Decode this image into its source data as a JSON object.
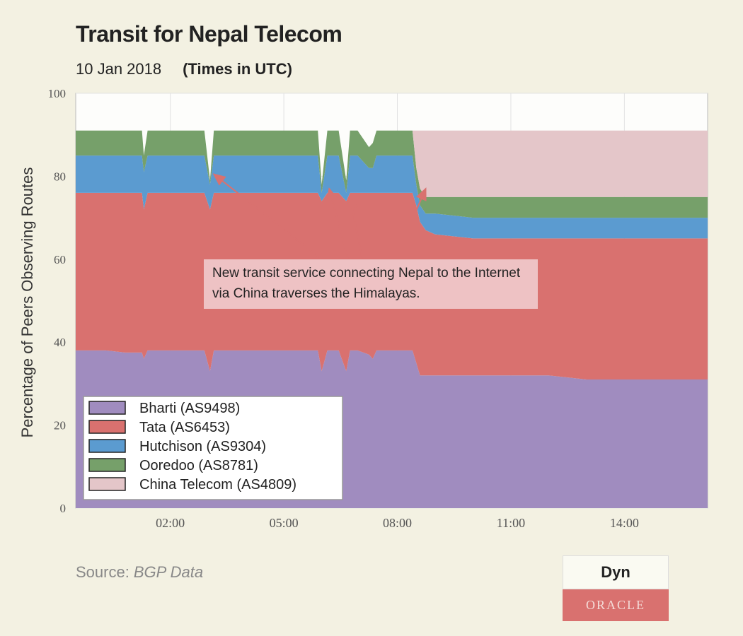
{
  "header": {
    "title": "Transit for Nepal Telecom",
    "date": "10 Jan 2018",
    "time_note": "(Times in UTC)"
  },
  "footer": {
    "source_label": "Source:",
    "source_value": "BGP Data",
    "logo_top": "Dyn",
    "logo_bottom": "ORACLE"
  },
  "chart_data": {
    "type": "area",
    "stacked": true,
    "title": "Transit for Nepal Telecom",
    "ylabel": "Percentage of Peers Observing Routes",
    "xlabel": "",
    "ylim": [
      0,
      100
    ],
    "xlim": [
      -0.5,
      16.2
    ],
    "yticks": [
      0,
      20,
      40,
      60,
      80,
      100
    ],
    "xticks": [
      2,
      5,
      8,
      11,
      14
    ],
    "xtick_labels": [
      "02:00",
      "05:00",
      "08:00",
      "11:00",
      "14:00"
    ],
    "grid": true,
    "legend_position": "bottom-left",
    "x_unit": "hours UTC",
    "x": [
      -0.5,
      0.3,
      0.8,
      1.25,
      1.3,
      1.4,
      2.0,
      2.9,
      3.05,
      3.15,
      3.3,
      4.0,
      5.0,
      5.9,
      6.0,
      6.15,
      6.3,
      6.45,
      6.65,
      6.75,
      6.85,
      6.95,
      7.25,
      7.35,
      7.45,
      7.85,
      8.0,
      8.4,
      8.5,
      8.6,
      8.75,
      9.0,
      10.0,
      11.0,
      12.0,
      13.0,
      14.0,
      15.0,
      16.2
    ],
    "series": [
      {
        "name": "Bharti (AS9498)",
        "color": "#a08cbf",
        "values": [
          38,
          38,
          37.5,
          37.5,
          36,
          38,
          38,
          38,
          33,
          38,
          38,
          38,
          38,
          38,
          33,
          38,
          38,
          38,
          33,
          38,
          38,
          38,
          37,
          36,
          38,
          38,
          38,
          38,
          35,
          32,
          32,
          32,
          32,
          32,
          32,
          31,
          31,
          31,
          31
        ]
      },
      {
        "name": "Tata (AS6453)",
        "color": "#d9716f",
        "values": [
          38,
          38,
          38.5,
          38.5,
          36,
          38,
          38,
          38,
          39,
          38,
          38,
          38,
          38,
          38,
          41,
          38,
          38,
          38,
          41,
          38,
          38,
          38,
          39,
          40,
          38,
          38,
          38,
          38,
          38,
          37,
          35,
          34,
          33,
          33,
          33,
          34,
          34,
          34,
          34
        ]
      },
      {
        "name": "Hutchison (AS9304)",
        "color": "#5b9bd0",
        "values": [
          9,
          9,
          9,
          9,
          9,
          9,
          9,
          9,
          6,
          9,
          9,
          9,
          9,
          9,
          2,
          9,
          9,
          9,
          2,
          9,
          9,
          9,
          6,
          6,
          9,
          9,
          9,
          9,
          5,
          4,
          4,
          5,
          5,
          5,
          5,
          5,
          5,
          5,
          5
        ]
      },
      {
        "name": "Ooredoo (AS8781)",
        "color": "#76a06a",
        "values": [
          6,
          6,
          6,
          6,
          4,
          6,
          6,
          6,
          1,
          6,
          6,
          6,
          6,
          6,
          2,
          6,
          6,
          6,
          3,
          6,
          6,
          6,
          5,
          6,
          6,
          6,
          6,
          6,
          4,
          4,
          4,
          4,
          5,
          5,
          5,
          5,
          5,
          5,
          5
        ]
      },
      {
        "name": "China Telecom (AS4809)",
        "color": "#e4c6c9",
        "values": [
          0,
          0,
          0,
          0,
          0,
          0,
          0,
          0,
          0,
          0,
          0,
          0,
          0,
          0,
          0,
          0,
          0,
          0,
          0,
          0,
          0,
          0,
          0,
          0,
          0,
          0,
          0,
          0,
          9,
          14,
          16,
          16,
          16,
          16,
          16,
          16,
          16,
          16,
          16
        ]
      }
    ],
    "annotation": "New transit service connecting Nepal to the Internet via China traverses the Himalayas."
  }
}
